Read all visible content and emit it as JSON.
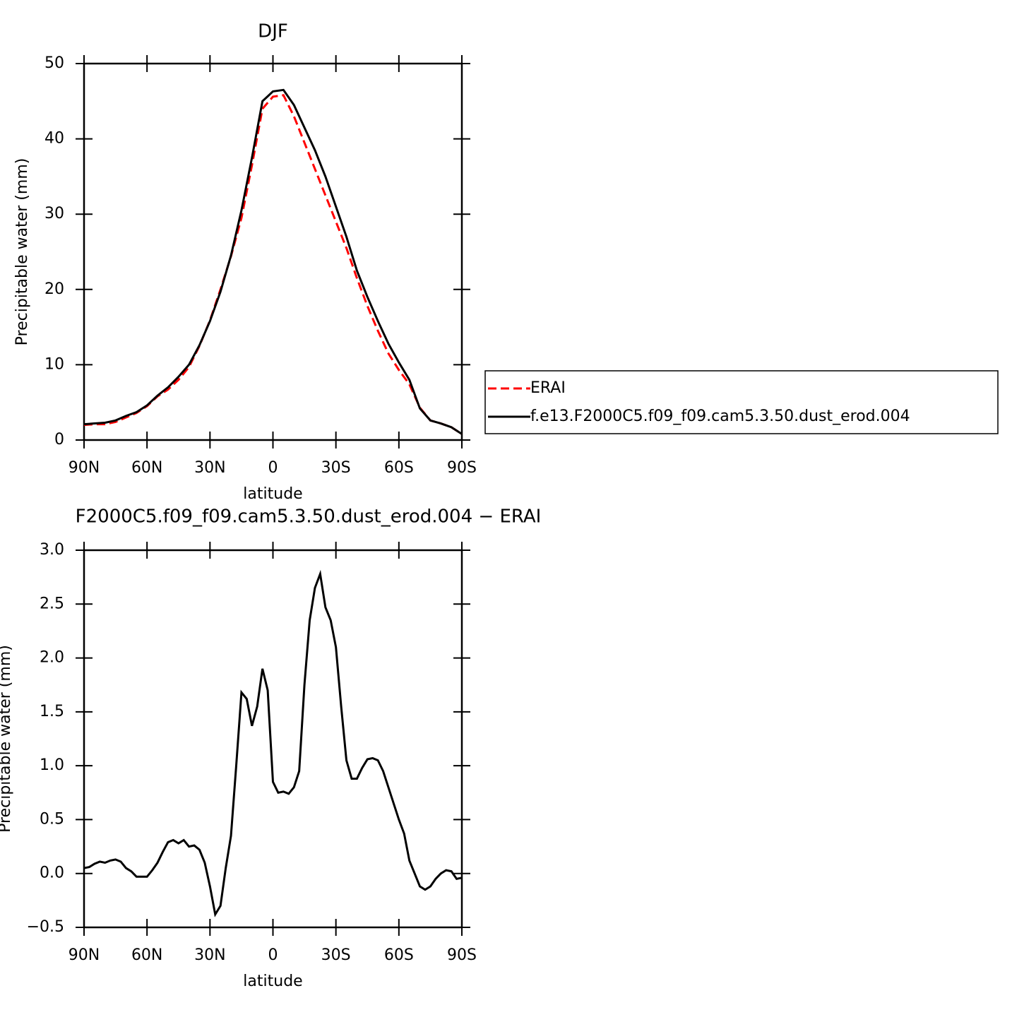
{
  "chart_data": [
    {
      "type": "line",
      "title": "DJF",
      "xlabel": "latitude",
      "ylabel": "Precipitable water (mm)",
      "x": [
        90,
        85,
        80,
        75,
        70,
        65,
        60,
        55,
        50,
        45,
        40,
        35,
        30,
        25,
        20,
        15,
        10,
        5,
        0,
        -5,
        -10,
        -15,
        -20,
        -25,
        -30,
        -35,
        -40,
        -45,
        -50,
        -55,
        -60,
        -65,
        -70,
        -75,
        -80,
        -85,
        -90
      ],
      "series": [
        {
          "name": "ERAI",
          "color": "#ff0000",
          "line_style": "dashed",
          "values": [
            2.0,
            2.1,
            2.1,
            2.4,
            3.0,
            3.6,
            4.5,
            5.8,
            6.7,
            8.0,
            9.7,
            12.5,
            15.9,
            20,
            24.4,
            29.5,
            36.5,
            44,
            45.6,
            45.8,
            43,
            39.5,
            36,
            32.5,
            29,
            25.5,
            21.5,
            17.8,
            14.5,
            11.5,
            9.3,
            7.4,
            4.3,
            2.6,
            2.2,
            1.7,
            0.8
          ]
        },
        {
          "name": "f.e13.F2000C5.f09_f09.cam5.3.50.dust_erod.004",
          "color": "#000000",
          "line_style": "solid",
          "values": [
            2.1,
            2.2,
            2.3,
            2.6,
            3.2,
            3.7,
            4.6,
            5.9,
            7.0,
            8.4,
            10.0,
            12.6,
            15.8,
            19.7,
            24.5,
            30.5,
            37.5,
            45,
            46.3,
            46.5,
            44.5,
            41.5,
            38.5,
            35,
            31,
            27,
            22.5,
            19,
            15.8,
            12.8,
            10.3,
            8,
            4.2,
            2.6,
            2.2,
            1.7,
            0.8
          ]
        }
      ],
      "xlim": [
        90,
        -90
      ],
      "xticks": [
        {
          "value": 90,
          "label": "90N"
        },
        {
          "value": 60,
          "label": "60N"
        },
        {
          "value": 30,
          "label": "30N"
        },
        0,
        {
          "value": -30,
          "label": "30S"
        },
        {
          "value": -60,
          "label": "60S"
        },
        {
          "value": -90,
          "label": "90S"
        }
      ],
      "ylim": [
        0,
        50
      ],
      "yticks": [
        0,
        10,
        20,
        30,
        40,
        50
      ],
      "legend": "outside-right"
    },
    {
      "type": "line",
      "title": "F2000C5.f09_f09.cam5.3.50.dust_erod.004 − ERAI",
      "xlabel": "latitude",
      "ylabel": "Precipitable water (mm)",
      "x": [
        90,
        87.5,
        85,
        82.5,
        80,
        77.5,
        75,
        72.5,
        70,
        67.5,
        65,
        62.5,
        60,
        57.5,
        55,
        52.5,
        50,
        47.5,
        45,
        42.5,
        40,
        37.5,
        35,
        32.5,
        30,
        27.5,
        25,
        22.5,
        20,
        17.5,
        15,
        12.5,
        10,
        7.5,
        5,
        2.5,
        0,
        -2.5,
        -5,
        -7.5,
        -10,
        -12.5,
        -15,
        -17.5,
        -20,
        -22.5,
        -25,
        -27.5,
        -30,
        -32.5,
        -35,
        -37.5,
        -40,
        -42.5,
        -45,
        -47.5,
        -50,
        -52.5,
        -55,
        -57.5,
        -60,
        -62.5,
        -65,
        -67.5,
        -70,
        -72.5,
        -75,
        -77.5,
        -80,
        -82.5,
        -85,
        -87.5,
        -90
      ],
      "series": [
        {
          "color": "#000000",
          "line_style": "solid",
          "values": [
            0.05,
            0.06,
            0.09,
            0.11,
            0.1,
            0.12,
            0.13,
            0.11,
            0.05,
            0.02,
            -0.03,
            -0.03,
            -0.03,
            0.03,
            0.1,
            0.2,
            0.29,
            0.31,
            0.28,
            0.31,
            0.25,
            0.26,
            0.22,
            0.1,
            -0.12,
            -0.38,
            -0.3,
            0.05,
            0.35,
            1.0,
            1.68,
            1.62,
            1.37,
            1.55,
            1.9,
            1.7,
            0.85,
            0.75,
            0.76,
            0.74,
            0.8,
            0.95,
            1.75,
            2.35,
            2.65,
            2.78,
            2.47,
            2.35,
            2.1,
            1.55,
            1.05,
            0.88,
            0.88,
            0.98,
            1.06,
            1.07,
            1.05,
            0.95,
            0.8,
            0.65,
            0.5,
            0.37,
            0.12,
            0.0,
            -0.12,
            -0.15,
            -0.12,
            -0.05,
            0.0,
            0.03,
            0.02,
            -0.05,
            -0.04
          ]
        }
      ],
      "xlim": [
        90,
        -90
      ],
      "xticks": [
        {
          "value": 90,
          "label": "90N"
        },
        {
          "value": 60,
          "label": "60N"
        },
        {
          "value": 30,
          "label": "30N"
        },
        0,
        {
          "value": -30,
          "label": "30S"
        },
        {
          "value": -60,
          "label": "60S"
        },
        {
          "value": -90,
          "label": "90S"
        }
      ],
      "ylim": [
        -0.5,
        3.0
      ],
      "yticks": [
        {
          "value": -0.5,
          "label": "−0.5"
        },
        {
          "value": 0,
          "label": "0.0"
        },
        0.5,
        {
          "value": 1,
          "label": "1.0"
        },
        1.5,
        {
          "value": 2,
          "label": "2.0"
        },
        2.5,
        {
          "value": 3,
          "label": "3.0"
        }
      ]
    }
  ]
}
